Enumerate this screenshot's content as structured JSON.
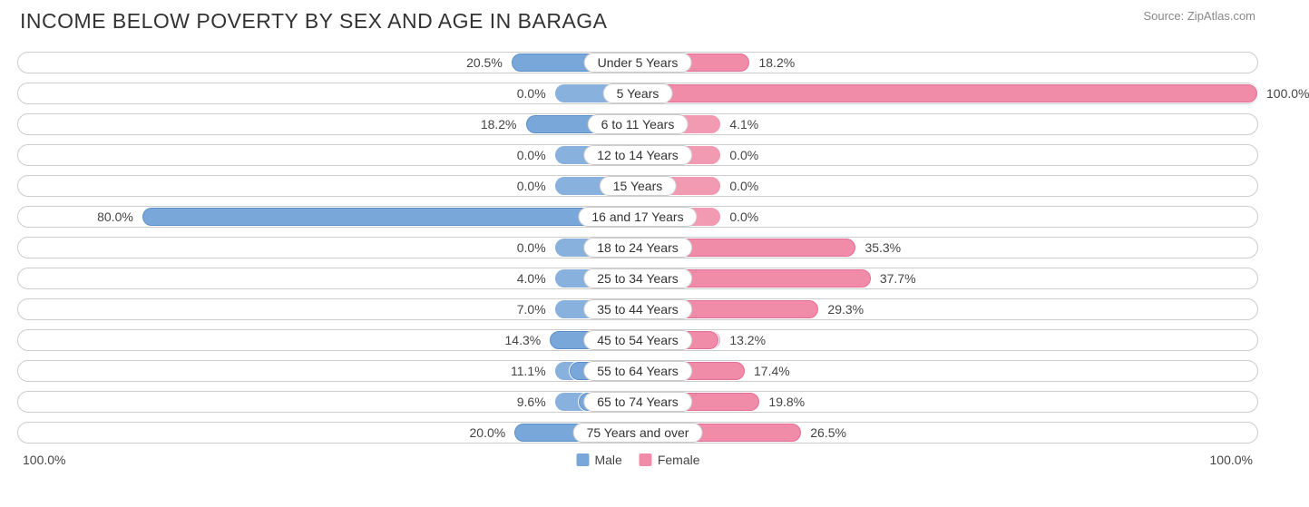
{
  "title": "INCOME BELOW POVERTY BY SEX AND AGE IN BARAGA",
  "source": "Source: ZipAtlas.com",
  "axis_left": "100.0%",
  "axis_right": "100.0%",
  "legend_male": "Male",
  "legend_female": "Female",
  "colors": {
    "male_fill": "#79a7d9",
    "male_stroke": "#5a8fc9",
    "female_fill": "#f08ba8",
    "female_stroke": "#e86b92",
    "track_border": "#cccccc",
    "text": "#444444",
    "title_text": "#333333",
    "source_text": "#888888",
    "baseline_male": "#88b1de",
    "baseline_female": "#f39ab3"
  },
  "baseline_pct": 13.5,
  "rows": [
    {
      "category": "Under 5 Years",
      "male": 20.5,
      "female": 18.2
    },
    {
      "category": "5 Years",
      "male": 0.0,
      "female": 100.0
    },
    {
      "category": "6 to 11 Years",
      "male": 18.2,
      "female": 4.1
    },
    {
      "category": "12 to 14 Years",
      "male": 0.0,
      "female": 0.0
    },
    {
      "category": "15 Years",
      "male": 0.0,
      "female": 0.0
    },
    {
      "category": "16 and 17 Years",
      "male": 80.0,
      "female": 0.0
    },
    {
      "category": "18 to 24 Years",
      "male": 0.0,
      "female": 35.3
    },
    {
      "category": "25 to 34 Years",
      "male": 4.0,
      "female": 37.7
    },
    {
      "category": "35 to 44 Years",
      "male": 7.0,
      "female": 29.3
    },
    {
      "category": "45 to 54 Years",
      "male": 14.3,
      "female": 13.2
    },
    {
      "category": "55 to 64 Years",
      "male": 11.1,
      "female": 17.4
    },
    {
      "category": "65 to 74 Years",
      "male": 9.6,
      "female": 19.8
    },
    {
      "category": "75 Years and over",
      "male": 20.0,
      "female": 26.5
    }
  ]
}
